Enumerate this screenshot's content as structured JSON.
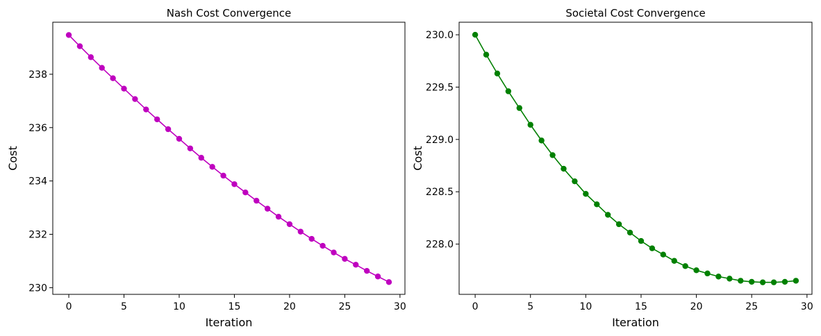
{
  "chart_data": [
    {
      "type": "line",
      "title": "Nash Cost Convergence",
      "xlabel": "Iteration",
      "ylabel": "Cost",
      "color": "#bf00bf",
      "marker": "circle",
      "xlim": [
        -1.45,
        30.45
      ],
      "ylim": [
        229.75,
        239.95
      ],
      "xticks": [
        0,
        5,
        10,
        15,
        20,
        25,
        30
      ],
      "yticks": [
        230,
        232,
        234,
        236,
        238
      ],
      "x": [
        0,
        1,
        2,
        3,
        4,
        5,
        6,
        7,
        8,
        9,
        10,
        11,
        12,
        13,
        14,
        15,
        16,
        17,
        18,
        19,
        20,
        21,
        22,
        23,
        24,
        25,
        26,
        27,
        28,
        29
      ],
      "y": [
        239.47,
        239.05,
        238.64,
        238.24,
        237.85,
        237.46,
        237.07,
        236.68,
        236.31,
        235.94,
        235.58,
        235.22,
        234.87,
        234.53,
        234.2,
        233.88,
        233.57,
        233.26,
        232.96,
        232.66,
        232.38,
        232.1,
        231.83,
        231.57,
        231.32,
        231.08,
        230.86,
        230.63,
        230.42,
        230.21
      ]
    },
    {
      "type": "line",
      "title": "Societal Cost Convergence",
      "xlabel": "Iteration",
      "ylabel": "Cost",
      "color": "#008000",
      "marker": "circle",
      "xlim": [
        -1.45,
        30.45
      ],
      "ylim": [
        227.52,
        230.12
      ],
      "xticks": [
        0,
        5,
        10,
        15,
        20,
        25,
        30
      ],
      "yticks": [
        "228.0",
        "228.5",
        "229.0",
        "229.5",
        "230.0"
      ],
      "x": [
        0,
        1,
        2,
        3,
        4,
        5,
        6,
        7,
        8,
        9,
        10,
        11,
        12,
        13,
        14,
        15,
        16,
        17,
        18,
        19,
        20,
        21,
        22,
        23,
        24,
        25,
        26,
        27,
        28,
        29
      ],
      "y": [
        230.0,
        229.81,
        229.63,
        229.46,
        229.3,
        229.14,
        228.99,
        228.85,
        228.72,
        228.6,
        228.48,
        228.38,
        228.28,
        228.19,
        228.11,
        228.03,
        227.96,
        227.9,
        227.84,
        227.79,
        227.75,
        227.72,
        227.69,
        227.67,
        227.65,
        227.64,
        227.635,
        227.635,
        227.64,
        227.65
      ]
    }
  ]
}
